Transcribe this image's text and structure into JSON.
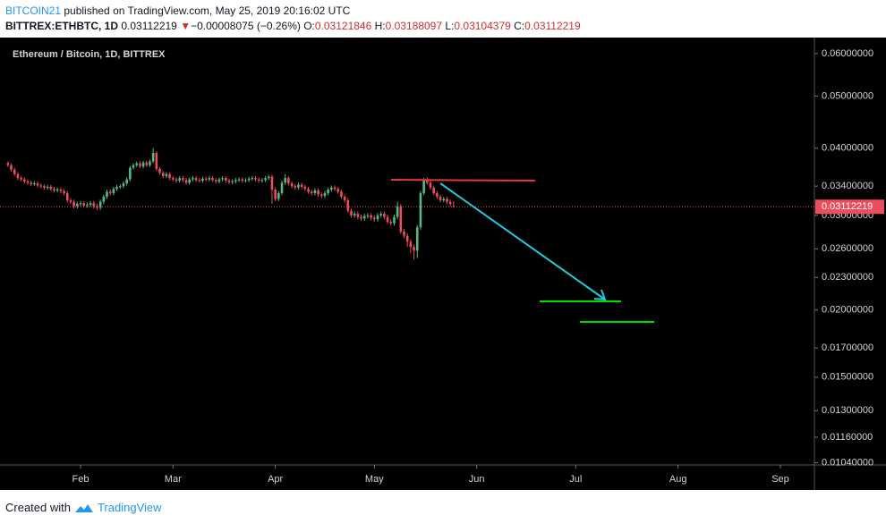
{
  "chart_data": {
    "type": "candlestick",
    "header": {
      "author": "BITCOIN21",
      "published": "published on TradingView.com, May 25, 2019 20:16:02 UTC",
      "symbol": "BITTREX:ETHBTC, 1D",
      "arrow": "▼",
      "change": "−0.00008075 (−0.26%)",
      "o_label": "O:",
      "h_label": "H:",
      "l_label": "L:",
      "c_label": "C:"
    },
    "title": "Ethereum / Bitcoin, 1D, BITTREX",
    "footer": {
      "text": "Created with",
      "brand": "TradingView"
    },
    "log_scale": true,
    "grid": false,
    "up_color": "#53b987",
    "down_color": "#eb4d5c",
    "xlim": [
      7.6,
      254.3
    ],
    "xticks": [
      {
        "value": 32,
        "label": "Feb"
      },
      {
        "value": 60,
        "label": "Mar"
      },
      {
        "value": 91,
        "label": "Apr"
      },
      {
        "value": 121,
        "label": "May"
      },
      {
        "value": 152,
        "label": "Jun"
      },
      {
        "value": 182,
        "label": "Jul"
      },
      {
        "value": 213,
        "label": "Aug"
      },
      {
        "value": 244,
        "label": "Sep"
      }
    ],
    "ylim": [
      0.0103,
      0.064
    ],
    "yticks": [
      {
        "value": 0.06,
        "label": "0.06000000"
      },
      {
        "value": 0.05,
        "label": "0.05000000"
      },
      {
        "value": 0.04,
        "label": "0.04000000"
      },
      {
        "value": 0.034,
        "label": "0.03400000"
      },
      {
        "value": 0.03,
        "label": "0.03000000"
      },
      {
        "value": 0.026,
        "label": "0.02600000"
      },
      {
        "value": 0.023,
        "label": "0.02300000"
      },
      {
        "value": 0.02,
        "label": "0.02000000"
      },
      {
        "value": 0.017,
        "label": "0.01700000"
      },
      {
        "value": 0.015,
        "label": "0.01500000"
      },
      {
        "value": 0.013,
        "label": "0.01300000"
      },
      {
        "value": 0.0116,
        "label": "0.01160000"
      },
      {
        "value": 0.0104,
        "label": "0.01040000"
      }
    ],
    "candles": {
      "x": [
        10,
        11,
        12,
        13,
        14,
        15,
        16,
        17,
        18,
        19,
        20,
        21,
        22,
        23,
        24,
        25,
        26,
        27,
        28,
        29,
        30,
        31,
        32,
        33,
        34,
        35,
        36,
        37,
        38,
        39,
        40,
        41,
        42,
        43,
        44,
        45,
        46,
        47,
        48,
        49,
        50,
        51,
        52,
        53,
        54,
        55,
        56,
        57,
        58,
        59,
        60,
        61,
        62,
        63,
        64,
        65,
        66,
        67,
        68,
        69,
        70,
        71,
        72,
        73,
        74,
        75,
        76,
        77,
        78,
        79,
        80,
        81,
        82,
        83,
        84,
        85,
        86,
        87,
        88,
        89,
        90,
        91,
        92,
        93,
        94,
        95,
        96,
        97,
        98,
        99,
        100,
        101,
        102,
        103,
        104,
        105,
        106,
        107,
        108,
        109,
        110,
        111,
        112,
        113,
        114,
        115,
        116,
        117,
        118,
        119,
        120,
        121,
        122,
        123,
        124,
        125,
        126,
        127,
        128,
        129,
        130,
        131,
        132,
        133,
        134,
        135,
        136,
        137,
        138,
        139,
        140,
        141,
        142,
        143,
        144,
        145
      ],
      "open": [
        0.0375,
        0.0372,
        0.0365,
        0.0358,
        0.0352,
        0.035,
        0.0347,
        0.0345,
        0.0343,
        0.0344,
        0.0341,
        0.034,
        0.0338,
        0.0339,
        0.0336,
        0.0334,
        0.0335,
        0.0333,
        0.033,
        0.032,
        0.0318,
        0.0312,
        0.0315,
        0.0316,
        0.0313,
        0.0314,
        0.0316,
        0.0312,
        0.031,
        0.0318,
        0.0325,
        0.0332,
        0.033,
        0.0336,
        0.0339,
        0.034,
        0.0344,
        0.035,
        0.0368,
        0.0372,
        0.0375,
        0.037,
        0.0376,
        0.0372,
        0.0378,
        0.0392,
        0.0366,
        0.036,
        0.0355,
        0.0358,
        0.0352,
        0.035,
        0.0348,
        0.0352,
        0.0349,
        0.0345,
        0.035,
        0.0352,
        0.0349,
        0.0348,
        0.0351,
        0.035,
        0.0352,
        0.0349,
        0.0347,
        0.035,
        0.0352,
        0.0348,
        0.0346,
        0.0347,
        0.0349,
        0.035,
        0.0348,
        0.0349,
        0.0351,
        0.0352,
        0.035,
        0.0348,
        0.0349,
        0.0352,
        0.0354,
        0.0335,
        0.0322,
        0.033,
        0.0345,
        0.0352,
        0.0344,
        0.034,
        0.0338,
        0.0342,
        0.0339,
        0.0336,
        0.0332,
        0.033,
        0.0334,
        0.0328,
        0.0326,
        0.033,
        0.0335,
        0.0338,
        0.0336,
        0.0332,
        0.0325,
        0.032,
        0.0306,
        0.03,
        0.0302,
        0.0298,
        0.0296,
        0.0299,
        0.03,
        0.0297,
        0.0295,
        0.03,
        0.0302,
        0.0298,
        0.0292,
        0.029,
        0.0298,
        0.0312,
        0.028,
        0.0275,
        0.0268,
        0.0262,
        0.0258,
        0.0285,
        0.033,
        0.035,
        0.0345,
        0.0338,
        0.033,
        0.0325,
        0.032,
        0.0322,
        0.0318,
        0.03121846
      ],
      "high": [
        0.0378,
        0.0375,
        0.0368,
        0.0361,
        0.0355,
        0.0353,
        0.035,
        0.0348,
        0.0347,
        0.0347,
        0.0344,
        0.0343,
        0.0342,
        0.0342,
        0.0339,
        0.0338,
        0.0338,
        0.0336,
        0.0333,
        0.0323,
        0.0321,
        0.0318,
        0.0319,
        0.0319,
        0.0317,
        0.0319,
        0.0319,
        0.0315,
        0.0321,
        0.0328,
        0.0335,
        0.0335,
        0.0339,
        0.0342,
        0.0343,
        0.0347,
        0.0353,
        0.0371,
        0.0375,
        0.0378,
        0.0378,
        0.0379,
        0.0379,
        0.0381,
        0.04,
        0.0395,
        0.0369,
        0.0363,
        0.0361,
        0.0361,
        0.0355,
        0.0353,
        0.0355,
        0.0355,
        0.0352,
        0.0353,
        0.0355,
        0.0355,
        0.0352,
        0.0354,
        0.0354,
        0.0355,
        0.0355,
        0.0352,
        0.0353,
        0.0355,
        0.0355,
        0.0351,
        0.035,
        0.0352,
        0.0353,
        0.0353,
        0.0352,
        0.0354,
        0.0355,
        0.0355,
        0.0353,
        0.0352,
        0.0355,
        0.0357,
        0.0357,
        0.0338,
        0.0333,
        0.0348,
        0.0358,
        0.0355,
        0.0347,
        0.0343,
        0.0345,
        0.0345,
        0.0342,
        0.0339,
        0.0335,
        0.0337,
        0.0337,
        0.0331,
        0.0333,
        0.0338,
        0.0341,
        0.0341,
        0.0339,
        0.0335,
        0.0328,
        0.0323,
        0.0309,
        0.0305,
        0.0305,
        0.0301,
        0.0302,
        0.0303,
        0.0303,
        0.03,
        0.0303,
        0.0305,
        0.0305,
        0.0301,
        0.0295,
        0.0301,
        0.0318,
        0.0315,
        0.0283,
        0.0278,
        0.0271,
        0.0265,
        0.0288,
        0.0333,
        0.0352,
        0.0353,
        0.0348,
        0.0341,
        0.0333,
        0.0328,
        0.0325,
        0.0325,
        0.0321,
        0.03188097
      ],
      "low": [
        0.0369,
        0.0362,
        0.0355,
        0.0349,
        0.0347,
        0.0344,
        0.0342,
        0.034,
        0.034,
        0.0338,
        0.0337,
        0.0335,
        0.0335,
        0.0333,
        0.0331,
        0.0331,
        0.033,
        0.0327,
        0.0317,
        0.0315,
        0.0309,
        0.0309,
        0.0312,
        0.031,
        0.031,
        0.0311,
        0.0309,
        0.0307,
        0.0307,
        0.0315,
        0.0322,
        0.0327,
        0.0327,
        0.0333,
        0.0336,
        0.0337,
        0.0341,
        0.0347,
        0.0365,
        0.0369,
        0.0367,
        0.0367,
        0.0369,
        0.0369,
        0.0375,
        0.0363,
        0.0357,
        0.0352,
        0.0352,
        0.0349,
        0.0347,
        0.0345,
        0.0345,
        0.0346,
        0.0342,
        0.0342,
        0.0347,
        0.0346,
        0.0345,
        0.0345,
        0.0347,
        0.0347,
        0.0346,
        0.0344,
        0.0344,
        0.0347,
        0.0345,
        0.0343,
        0.0343,
        0.0344,
        0.0346,
        0.0345,
        0.0345,
        0.0346,
        0.0348,
        0.0347,
        0.0345,
        0.0345,
        0.0346,
        0.0349,
        0.0315,
        0.0319,
        0.0319,
        0.0327,
        0.0342,
        0.0341,
        0.0337,
        0.0335,
        0.0335,
        0.0336,
        0.0333,
        0.0329,
        0.0327,
        0.0327,
        0.0325,
        0.0323,
        0.0323,
        0.0327,
        0.0332,
        0.0333,
        0.0329,
        0.0322,
        0.0317,
        0.0303,
        0.0297,
        0.0297,
        0.0295,
        0.0293,
        0.0293,
        0.0296,
        0.0294,
        0.0292,
        0.0292,
        0.0297,
        0.0295,
        0.0289,
        0.0287,
        0.0287,
        0.0295,
        0.0277,
        0.0272,
        0.0262,
        0.0255,
        0.0248,
        0.025,
        0.0282,
        0.0327,
        0.0342,
        0.0335,
        0.0327,
        0.0322,
        0.0317,
        0.0317,
        0.0315,
        0.0312,
        0.03104379
      ],
      "close": [
        0.0372,
        0.0365,
        0.0358,
        0.0352,
        0.035,
        0.0347,
        0.0345,
        0.0343,
        0.0344,
        0.0341,
        0.034,
        0.0338,
        0.0339,
        0.0336,
        0.0334,
        0.0335,
        0.0333,
        0.033,
        0.032,
        0.0318,
        0.0312,
        0.0315,
        0.0316,
        0.0313,
        0.0314,
        0.0316,
        0.0312,
        0.031,
        0.0318,
        0.0325,
        0.0332,
        0.033,
        0.0336,
        0.0339,
        0.034,
        0.0344,
        0.035,
        0.0368,
        0.0372,
        0.0375,
        0.037,
        0.0376,
        0.0372,
        0.0378,
        0.0392,
        0.0366,
        0.036,
        0.0355,
        0.0358,
        0.0352,
        0.035,
        0.0348,
        0.0352,
        0.0349,
        0.0345,
        0.035,
        0.0352,
        0.0349,
        0.0348,
        0.0351,
        0.035,
        0.0352,
        0.0349,
        0.0347,
        0.035,
        0.0352,
        0.0348,
        0.0346,
        0.0347,
        0.0349,
        0.035,
        0.0348,
        0.0349,
        0.0351,
        0.0352,
        0.035,
        0.0348,
        0.0349,
        0.0352,
        0.0354,
        0.0335,
        0.0322,
        0.033,
        0.0345,
        0.0352,
        0.0344,
        0.034,
        0.0338,
        0.0342,
        0.0339,
        0.0336,
        0.0332,
        0.033,
        0.0334,
        0.0328,
        0.0326,
        0.033,
        0.0335,
        0.0338,
        0.0336,
        0.0332,
        0.0325,
        0.032,
        0.0306,
        0.03,
        0.0302,
        0.0298,
        0.0296,
        0.0299,
        0.03,
        0.0297,
        0.0295,
        0.03,
        0.0302,
        0.0298,
        0.0292,
        0.029,
        0.0298,
        0.0312,
        0.028,
        0.0275,
        0.0268,
        0.0262,
        0.0258,
        0.0285,
        0.033,
        0.035,
        0.0345,
        0.0338,
        0.033,
        0.0325,
        0.032,
        0.0322,
        0.0318,
        0.0315,
        0.03112219
      ]
    }
  }
}
